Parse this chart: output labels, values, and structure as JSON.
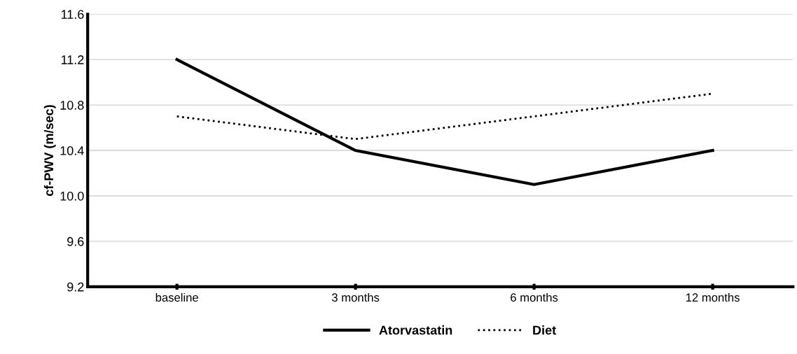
{
  "chart_data": {
    "type": "line",
    "ylabel": "cf-PWV (m/sec)",
    "categories": [
      "baseline",
      "3 months",
      "6 months",
      "12 months"
    ],
    "series": [
      {
        "name": "Atorvastatin",
        "color": "#000000",
        "values": [
          11.2,
          10.4,
          10.1,
          10.4
        ],
        "line_style": "solid"
      },
      {
        "name": "Diet",
        "color": "#000000",
        "values": [
          10.7,
          10.5,
          10.7,
          10.9
        ],
        "line_style": "dotted"
      }
    ],
    "ylim": [
      9.2,
      11.6
    ],
    "yticks": [
      9.2,
      9.6,
      {
        "value": 10.0,
        "label": "10.0"
      },
      10.4,
      10.8,
      11.2,
      11.6
    ],
    "grid": "y",
    "legend": "bottom",
    "marker": "none"
  }
}
